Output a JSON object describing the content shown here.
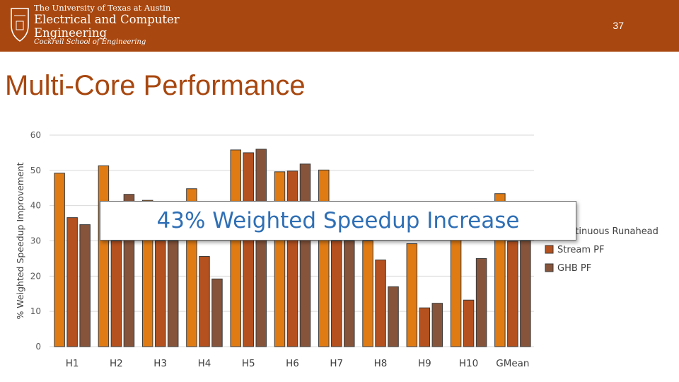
{
  "header": {
    "logo_line1": "The University of Texas at Austin",
    "logo_line2": "Electrical and Computer",
    "logo_line2b": "Engineering",
    "logo_line3": "Cockrell School of Engineering",
    "page_number": "37",
    "brand_color": "#a8470f"
  },
  "title": "Multi-Core Performance",
  "callout": "43% Weighted Speedup Increase",
  "chart_data": {
    "type": "bar",
    "categories": [
      "H1",
      "H2",
      "H3",
      "H4",
      "H5",
      "H6",
      "H7",
      "H8",
      "H9",
      "H10",
      "GMean"
    ],
    "ylabel": "% Weighted Speedup Improvement",
    "xlabel": "",
    "ylim": [
      0,
      60
    ],
    "yticks": [
      0,
      10,
      20,
      30,
      40,
      50,
      60
    ],
    "grid": true,
    "legend_position": "right",
    "series": [
      {
        "name": "Continuous Runahead",
        "color": "#e07b14",
        "values": [
          49.2,
          51.3,
          41.5,
          44.8,
          55.8,
          49.6,
          50.1,
          30.0,
          29.2,
          31.0,
          43.4
        ]
      },
      {
        "name": "Stream PF",
        "color": "#b4511f",
        "values": [
          36.6,
          30.0,
          30.0,
          25.6,
          55.0,
          49.8,
          30.0,
          24.6,
          11.0,
          13.2,
          29.9
        ]
      },
      {
        "name": "GHB PF",
        "color": "#86543b",
        "values": [
          34.6,
          43.2,
          30.0,
          19.2,
          56.0,
          51.8,
          30.0,
          17.0,
          12.3,
          25.0,
          30.0
        ]
      }
    ]
  }
}
